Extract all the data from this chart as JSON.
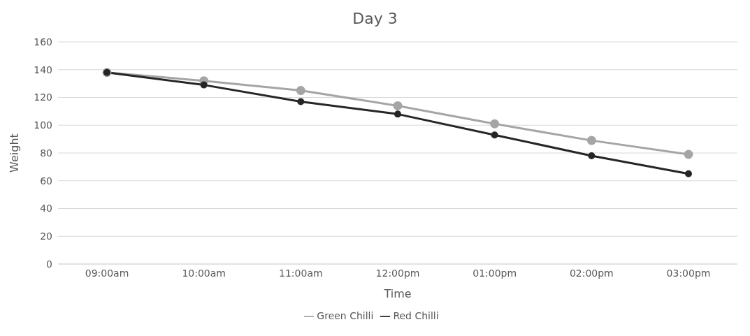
{
  "chart_data": {
    "type": "line",
    "title": "Day 3",
    "xlabel": "Time",
    "ylabel": "Weight",
    "categories": [
      "09:00am",
      "10:00am",
      "11:00am",
      "12:00pm",
      "01:00pm",
      "02:00pm",
      "03:00pm"
    ],
    "series": [
      {
        "name": "Green Chilli",
        "color": "#a5a5a5",
        "values": [
          138,
          132,
          125,
          114,
          101,
          89,
          79
        ]
      },
      {
        "name": "Red Chilli",
        "color": "#262626",
        "values": [
          138,
          129,
          117,
          108,
          93,
          78,
          65
        ]
      }
    ],
    "ylim": [
      0,
      160
    ],
    "yticks": [
      0,
      20,
      40,
      60,
      80,
      100,
      120,
      140,
      160
    ],
    "grid": "y",
    "legend": "bottom",
    "marker": "circle",
    "line_style": "solid"
  }
}
